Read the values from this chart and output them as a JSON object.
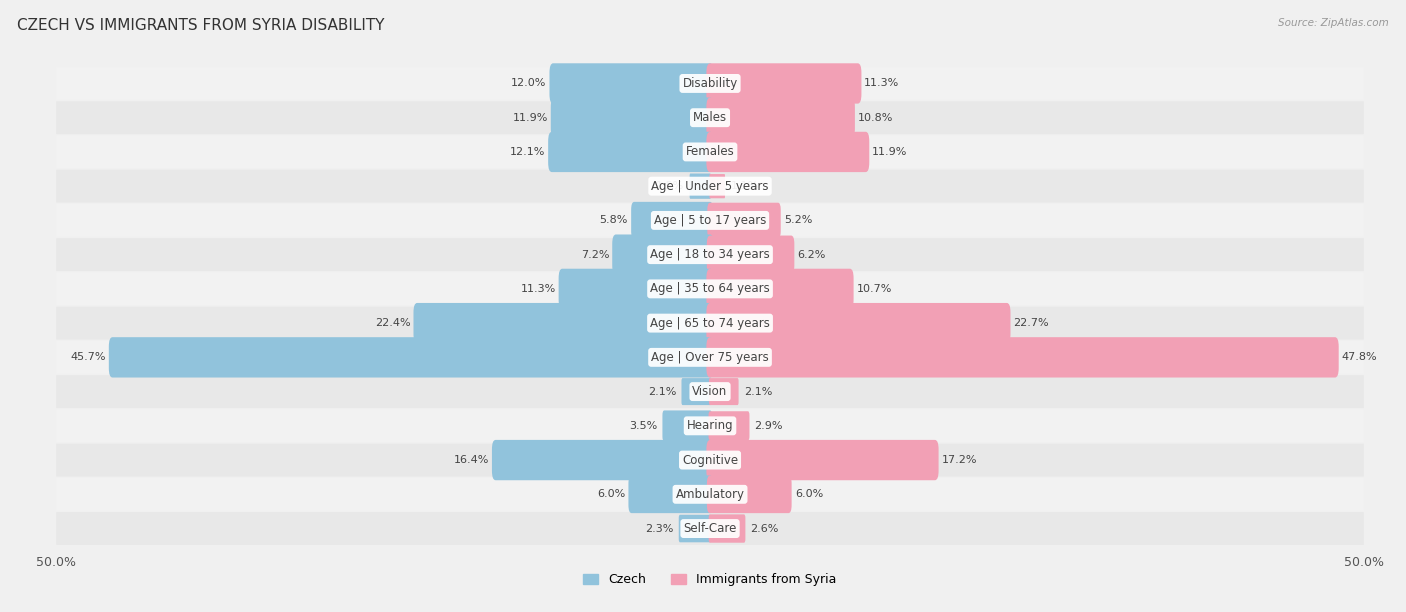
{
  "title": "Czech vs Immigrants from Syria Disability",
  "source": "Source: ZipAtlas.com",
  "categories": [
    "Disability",
    "Males",
    "Females",
    "Age | Under 5 years",
    "Age | 5 to 17 years",
    "Age | 18 to 34 years",
    "Age | 35 to 64 years",
    "Age | 65 to 74 years",
    "Age | Over 75 years",
    "Vision",
    "Hearing",
    "Cognitive",
    "Ambulatory",
    "Self-Care"
  ],
  "czech_values": [
    12.0,
    11.9,
    12.1,
    1.5,
    5.8,
    7.2,
    11.3,
    22.4,
    45.7,
    2.1,
    3.5,
    16.4,
    6.0,
    2.3
  ],
  "syria_values": [
    11.3,
    10.8,
    11.9,
    1.1,
    5.2,
    6.2,
    10.7,
    22.7,
    47.8,
    2.1,
    2.9,
    17.2,
    6.0,
    2.6
  ],
  "czech_color": "#91C3DC",
  "syria_color": "#F2A0B5",
  "axis_max": 50.0,
  "fig_bg": "#f0f0f0",
  "row_bg_odd": "#e8e8e8",
  "row_bg_even": "#f2f2f2",
  "title_fontsize": 11,
  "label_fontsize": 8.5,
  "value_fontsize": 8,
  "legend_labels": [
    "Czech",
    "Immigrants from Syria"
  ]
}
